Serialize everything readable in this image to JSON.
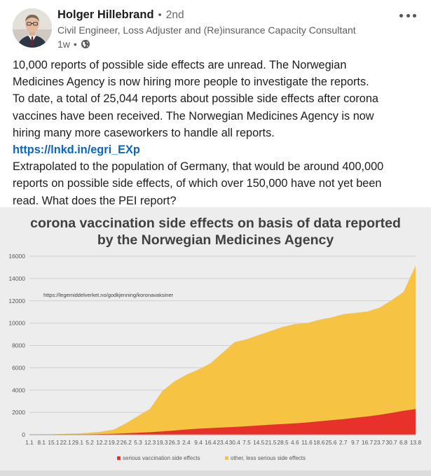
{
  "post": {
    "author": "Holger Hillebrand",
    "separator": "•",
    "degree": "2nd",
    "headline": "Civil Engineer, Loss Adjuster and (Re)insurance Capacity Consultant",
    "time": "1w",
    "meta_separator": "•",
    "visibility_icon": "globe-icon",
    "more_icon": "more-dots-icon",
    "text_lines": [
      "10,000 reports of possible side effects are unread. The Norwegian",
      "Medicines Agency is now hiring more people to investigate the reports.",
      "To date, a total of 25,044 reports about possible side effects after corona",
      "vaccines have been received. The Norwegian Medicines Agency is now",
      "hiring many more caseworkers to handle all reports."
    ],
    "link": "https://lnkd.in/egri_EXp",
    "text_lines_2": [
      "Extrapolated to the population of Germany, that would be around 400,000",
      "reports on possible side effects, of which over 150,000 have not yet been",
      "read. What does the PEI report?"
    ]
  },
  "chart_data": {
    "type": "area",
    "title_lines": [
      "corona vaccination side effects on basis of data reported",
      "by the Norwegian Medicines Agency"
    ],
    "source_note": "https://legemiddelverket.no/godkjenning/koronavaksiner",
    "ylim": [
      0,
      16000
    ],
    "y_ticks": [
      0,
      2000,
      4000,
      6000,
      8000,
      10000,
      12000,
      14000,
      16000
    ],
    "x_labels": [
      "1.1",
      "8.1",
      "15.1",
      "22.1",
      "29.1",
      "5.2",
      "12.2",
      "19.2",
      "26.2",
      "5.3",
      "12.3",
      "19.3",
      "26.3",
      "2.4",
      "9.4",
      "16.4",
      "23.4",
      "30.4",
      "7.5",
      "14.5",
      "21.5",
      "28.5",
      "4.6",
      "11.6",
      "18.6",
      "25.6",
      "2.7",
      "9.7",
      "16.7",
      "23.7",
      "30.7",
      "6.8",
      "13.8"
    ],
    "stacked": true,
    "legend_position": "bottom",
    "series": [
      {
        "name": "serious vaccination side effects",
        "color": "#e8312a",
        "values": [
          0,
          0,
          10,
          20,
          30,
          40,
          60,
          90,
          130,
          180,
          230,
          300,
          380,
          470,
          540,
          600,
          650,
          700,
          760,
          830,
          900,
          960,
          1020,
          1100,
          1200,
          1300,
          1400,
          1520,
          1640,
          1780,
          1950,
          2150,
          2300
        ]
      },
      {
        "name": "other, less serious side effects",
        "color": "#f6c343",
        "values": [
          0,
          10,
          30,
          60,
          90,
          130,
          220,
          380,
          900,
          1500,
          2100,
          3600,
          4400,
          4900,
          5300,
          5800,
          6700,
          7600,
          7800,
          8100,
          8400,
          8700,
          8900,
          8900,
          9100,
          9200,
          9400,
          9400,
          9400,
          9600,
          10100,
          10650,
          12850
        ]
      }
    ]
  }
}
